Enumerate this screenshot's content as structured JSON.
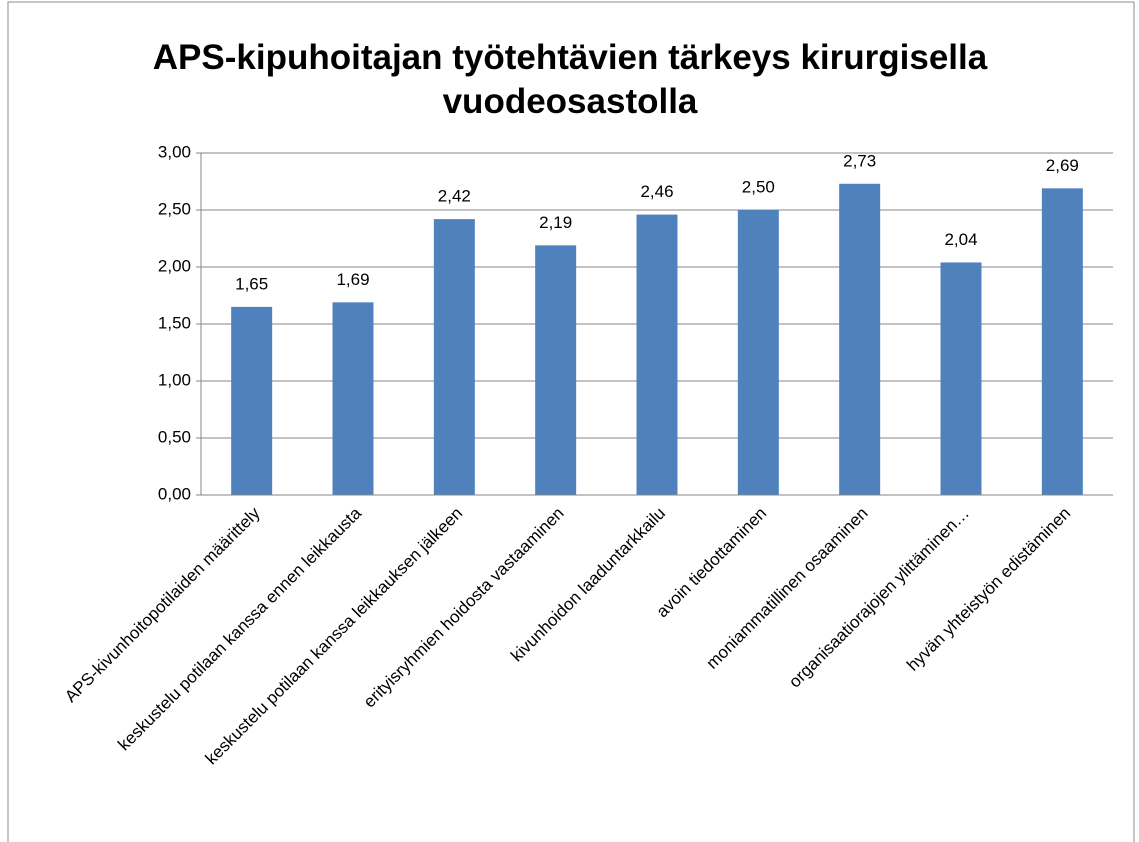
{
  "chart_data": {
    "type": "bar",
    "title": "APS-kipuhoitajan työtehtävien tärkeys kirurgisella vuodeosastolla",
    "categories": [
      "APS-kivunhoitopotilaiden määrittely",
      "keskustelu potilaan kanssa ennen leikkausta",
      "keskustelu potilaan kanssa leikkauksen jälkeen",
      "erityisryhmien hoidosta vastaaminen",
      "kivunhoidon laaduntarkkailu",
      "avoin tiedottaminen",
      "moniammatillinen osaaminen",
      "organisaatiorajojen ylittäminen…",
      "hyvän yhteistyön edistäminen"
    ],
    "values": [
      1.65,
      1.69,
      2.42,
      2.19,
      2.46,
      2.5,
      2.73,
      2.04,
      2.69
    ],
    "value_labels": [
      "1,65",
      "1,69",
      "2,42",
      "2,19",
      "2,46",
      "2,50",
      "2,73",
      "2,04",
      "2,69"
    ],
    "color": "#4f81bd",
    "ylim": [
      0,
      3
    ],
    "yticks": [
      {
        "value": 0,
        "label": "0,00"
      },
      {
        "value": 0.5,
        "label": "0,50"
      },
      {
        "value": 1,
        "label": "1,00"
      },
      {
        "value": 1.5,
        "label": "1,50"
      },
      {
        "value": 2,
        "label": "2,00"
      },
      {
        "value": 2.5,
        "label": "2,50"
      },
      {
        "value": 3,
        "label": "3,00"
      }
    ],
    "grid": true
  }
}
